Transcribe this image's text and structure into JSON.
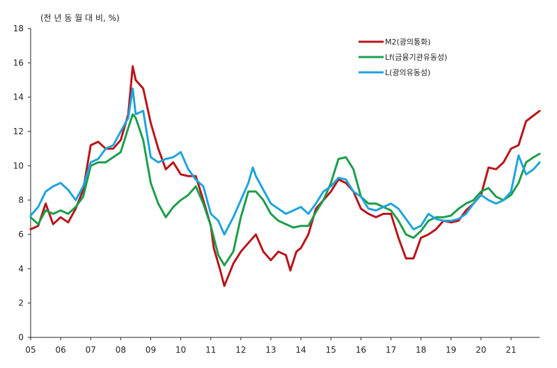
{
  "chart_data": {
    "type": "line",
    "unit_label": "(전 년 동 월 대 비,  %)",
    "ylim": [
      0,
      18
    ],
    "yticks": [
      "0",
      "2",
      "4",
      "6",
      "8",
      "10",
      "12",
      "14",
      "16",
      "18"
    ],
    "xlim": [
      2005,
      2021.95
    ],
    "xtick_labels": [
      "05",
      "06",
      "07",
      "08",
      "09",
      "10",
      "11",
      "12",
      "13",
      "14",
      "15",
      "16",
      "17",
      "18",
      "19",
      "20",
      "21"
    ],
    "grid": false,
    "legend_position": "top-right",
    "series": [
      {
        "name": "M2(광의통화)",
        "color": "#b8141a",
        "points": [
          [
            2005.0,
            6.3
          ],
          [
            2005.25,
            6.5
          ],
          [
            2005.5,
            7.8
          ],
          [
            2005.75,
            6.6
          ],
          [
            2006.0,
            7.0
          ],
          [
            2006.25,
            6.7
          ],
          [
            2006.5,
            7.5
          ],
          [
            2006.75,
            8.6
          ],
          [
            2007.0,
            11.2
          ],
          [
            2007.25,
            11.4
          ],
          [
            2007.5,
            11.0
          ],
          [
            2007.75,
            11.0
          ],
          [
            2008.0,
            11.5
          ],
          [
            2008.25,
            13.0
          ],
          [
            2008.4,
            15.8
          ],
          [
            2008.5,
            15.0
          ],
          [
            2008.75,
            14.5
          ],
          [
            2009.0,
            12.5
          ],
          [
            2009.25,
            11.0
          ],
          [
            2009.5,
            9.8
          ],
          [
            2009.75,
            10.2
          ],
          [
            2010.0,
            9.5
          ],
          [
            2010.25,
            9.4
          ],
          [
            2010.5,
            9.4
          ],
          [
            2010.75,
            8.0
          ],
          [
            2011.0,
            6.5
          ],
          [
            2011.1,
            5.2
          ],
          [
            2011.3,
            4.0
          ],
          [
            2011.45,
            3.0
          ],
          [
            2011.75,
            4.3
          ],
          [
            2012.0,
            5.0
          ],
          [
            2012.25,
            5.5
          ],
          [
            2012.5,
            6.0
          ],
          [
            2012.75,
            5.0
          ],
          [
            2013.0,
            4.5
          ],
          [
            2013.25,
            5.0
          ],
          [
            2013.5,
            4.8
          ],
          [
            2013.65,
            3.9
          ],
          [
            2013.85,
            5.0
          ],
          [
            2014.0,
            5.2
          ],
          [
            2014.25,
            6.0
          ],
          [
            2014.5,
            7.5
          ],
          [
            2014.75,
            8.0
          ],
          [
            2015.0,
            8.5
          ],
          [
            2015.25,
            9.2
          ],
          [
            2015.5,
            9.0
          ],
          [
            2015.75,
            8.5
          ],
          [
            2016.0,
            7.5
          ],
          [
            2016.25,
            7.2
          ],
          [
            2016.5,
            7.0
          ],
          [
            2016.75,
            7.2
          ],
          [
            2017.0,
            7.2
          ],
          [
            2017.25,
            5.8
          ],
          [
            2017.5,
            4.6
          ],
          [
            2017.75,
            4.6
          ],
          [
            2018.0,
            5.8
          ],
          [
            2018.25,
            6.0
          ],
          [
            2018.5,
            6.3
          ],
          [
            2018.75,
            6.8
          ],
          [
            2019.0,
            6.7
          ],
          [
            2019.25,
            6.8
          ],
          [
            2019.5,
            7.4
          ],
          [
            2019.75,
            7.8
          ],
          [
            2020.0,
            8.3
          ],
          [
            2020.25,
            9.9
          ],
          [
            2020.5,
            9.8
          ],
          [
            2020.75,
            10.2
          ],
          [
            2021.0,
            11.0
          ],
          [
            2021.25,
            11.2
          ],
          [
            2021.5,
            12.6
          ],
          [
            2021.95,
            13.2
          ]
        ]
      },
      {
        "name": "Lf(금융기관유동성)",
        "color": "#1a9e4a",
        "points": [
          [
            2005.0,
            7.0
          ],
          [
            2005.25,
            6.6
          ],
          [
            2005.5,
            7.4
          ],
          [
            2005.75,
            7.2
          ],
          [
            2006.0,
            7.4
          ],
          [
            2006.25,
            7.2
          ],
          [
            2006.5,
            7.6
          ],
          [
            2006.75,
            8.2
          ],
          [
            2007.0,
            10.0
          ],
          [
            2007.25,
            10.2
          ],
          [
            2007.5,
            10.2
          ],
          [
            2007.75,
            10.5
          ],
          [
            2008.0,
            10.8
          ],
          [
            2008.25,
            12.2
          ],
          [
            2008.4,
            13.0
          ],
          [
            2008.5,
            12.8
          ],
          [
            2008.75,
            11.5
          ],
          [
            2009.0,
            9.0
          ],
          [
            2009.25,
            7.8
          ],
          [
            2009.5,
            7.0
          ],
          [
            2009.75,
            7.6
          ],
          [
            2010.0,
            8.0
          ],
          [
            2010.25,
            8.3
          ],
          [
            2010.5,
            8.8
          ],
          [
            2010.75,
            7.8
          ],
          [
            2011.0,
            6.5
          ],
          [
            2011.25,
            4.8
          ],
          [
            2011.45,
            4.2
          ],
          [
            2011.75,
            5.0
          ],
          [
            2012.0,
            7.0
          ],
          [
            2012.25,
            8.5
          ],
          [
            2012.5,
            8.5
          ],
          [
            2012.75,
            8.0
          ],
          [
            2013.0,
            7.2
          ],
          [
            2013.25,
            6.8
          ],
          [
            2013.5,
            6.6
          ],
          [
            2013.75,
            6.4
          ],
          [
            2014.0,
            6.5
          ],
          [
            2014.25,
            6.5
          ],
          [
            2014.5,
            7.3
          ],
          [
            2014.75,
            8.0
          ],
          [
            2015.0,
            9.0
          ],
          [
            2015.25,
            10.4
          ],
          [
            2015.5,
            10.5
          ],
          [
            2015.75,
            9.8
          ],
          [
            2016.0,
            8.2
          ],
          [
            2016.25,
            7.8
          ],
          [
            2016.5,
            7.8
          ],
          [
            2016.75,
            7.6
          ],
          [
            2017.0,
            7.4
          ],
          [
            2017.25,
            6.8
          ],
          [
            2017.5,
            6.0
          ],
          [
            2017.75,
            5.8
          ],
          [
            2018.0,
            6.2
          ],
          [
            2018.25,
            6.8
          ],
          [
            2018.5,
            7.0
          ],
          [
            2018.75,
            7.0
          ],
          [
            2019.0,
            7.1
          ],
          [
            2019.25,
            7.5
          ],
          [
            2019.5,
            7.8
          ],
          [
            2019.75,
            8.0
          ],
          [
            2020.0,
            8.5
          ],
          [
            2020.25,
            8.7
          ],
          [
            2020.5,
            8.2
          ],
          [
            2020.75,
            8.0
          ],
          [
            2021.0,
            8.3
          ],
          [
            2021.25,
            9.0
          ],
          [
            2021.5,
            10.2
          ],
          [
            2021.75,
            10.5
          ],
          [
            2021.95,
            10.7
          ]
        ]
      },
      {
        "name": "L(광의유동성)",
        "color": "#1ea3dc",
        "points": [
          [
            2005.0,
            7.1
          ],
          [
            2005.25,
            7.6
          ],
          [
            2005.5,
            8.5
          ],
          [
            2005.75,
            8.8
          ],
          [
            2006.0,
            9.0
          ],
          [
            2006.25,
            8.6
          ],
          [
            2006.5,
            8.0
          ],
          [
            2006.75,
            8.8
          ],
          [
            2007.0,
            10.2
          ],
          [
            2007.25,
            10.4
          ],
          [
            2007.5,
            11.0
          ],
          [
            2007.75,
            11.2
          ],
          [
            2008.0,
            12.0
          ],
          [
            2008.25,
            12.8
          ],
          [
            2008.4,
            14.5
          ],
          [
            2008.5,
            13.0
          ],
          [
            2008.75,
            13.2
          ],
          [
            2009.0,
            10.5
          ],
          [
            2009.25,
            10.2
          ],
          [
            2009.5,
            10.4
          ],
          [
            2009.75,
            10.5
          ],
          [
            2010.0,
            10.8
          ],
          [
            2010.25,
            9.8
          ],
          [
            2010.5,
            9.2
          ],
          [
            2010.75,
            8.8
          ],
          [
            2011.0,
            7.2
          ],
          [
            2011.25,
            6.8
          ],
          [
            2011.45,
            6.0
          ],
          [
            2011.75,
            7.0
          ],
          [
            2012.0,
            8.0
          ],
          [
            2012.25,
            9.0
          ],
          [
            2012.4,
            9.9
          ],
          [
            2012.5,
            9.4
          ],
          [
            2012.75,
            8.6
          ],
          [
            2013.0,
            7.8
          ],
          [
            2013.25,
            7.5
          ],
          [
            2013.5,
            7.2
          ],
          [
            2013.75,
            7.4
          ],
          [
            2014.0,
            7.6
          ],
          [
            2014.25,
            7.2
          ],
          [
            2014.5,
            7.8
          ],
          [
            2014.75,
            8.5
          ],
          [
            2015.0,
            8.8
          ],
          [
            2015.25,
            9.3
          ],
          [
            2015.5,
            9.2
          ],
          [
            2015.75,
            8.5
          ],
          [
            2016.0,
            8.2
          ],
          [
            2016.25,
            7.5
          ],
          [
            2016.5,
            7.4
          ],
          [
            2016.75,
            7.6
          ],
          [
            2017.0,
            7.8
          ],
          [
            2017.25,
            7.5
          ],
          [
            2017.5,
            6.9
          ],
          [
            2017.75,
            6.3
          ],
          [
            2018.0,
            6.5
          ],
          [
            2018.25,
            7.2
          ],
          [
            2018.5,
            6.9
          ],
          [
            2018.75,
            6.8
          ],
          [
            2019.0,
            6.8
          ],
          [
            2019.25,
            6.9
          ],
          [
            2019.5,
            7.2
          ],
          [
            2019.75,
            7.8
          ],
          [
            2020.0,
            8.3
          ],
          [
            2020.25,
            8.0
          ],
          [
            2020.5,
            7.8
          ],
          [
            2020.75,
            8.0
          ],
          [
            2021.0,
            8.5
          ],
          [
            2021.25,
            10.6
          ],
          [
            2021.5,
            9.5
          ],
          [
            2021.75,
            9.8
          ],
          [
            2021.95,
            10.2
          ]
        ]
      }
    ]
  }
}
